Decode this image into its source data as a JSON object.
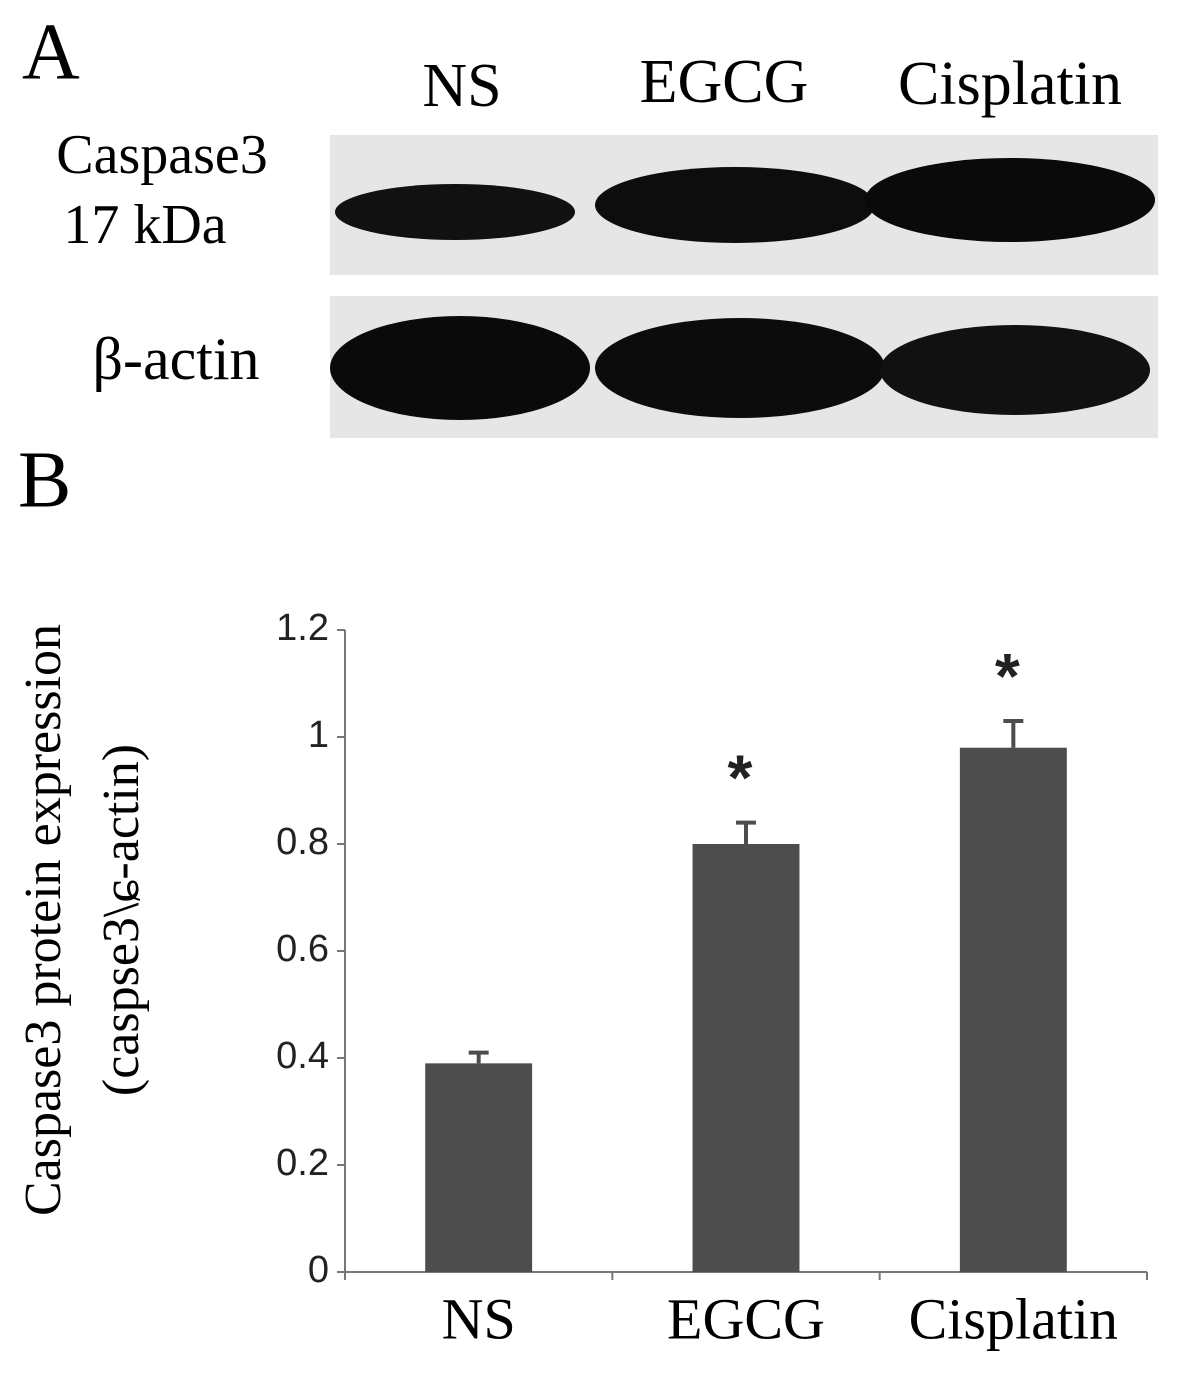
{
  "panel_a": {
    "label": "A",
    "lanes": [
      "NS",
      "EGCG",
      "Cisplatin"
    ],
    "rows": [
      [
        "Caspase3",
        "17 kDa"
      ],
      [
        "β-actin"
      ]
    ]
  },
  "chart_data": {
    "type": "bar",
    "panel_label": "B",
    "y_label": [
      "Caspase3 protein expression",
      "(caspse3\\ɕ-actin)"
    ],
    "categories": [
      "NS",
      "EGCG",
      "Cisplatin"
    ],
    "values": [
      0.39,
      0.8,
      0.98
    ],
    "errors": [
      0.02,
      0.04,
      0.05
    ],
    "markers": [
      null,
      "*",
      "*"
    ],
    "color": "#4d4d4d",
    "ylim": [
      0,
      1.2
    ],
    "yticks": [
      0,
      0.2,
      0.4,
      0.6,
      0.8,
      1,
      1.2
    ],
    "grid": false
  }
}
